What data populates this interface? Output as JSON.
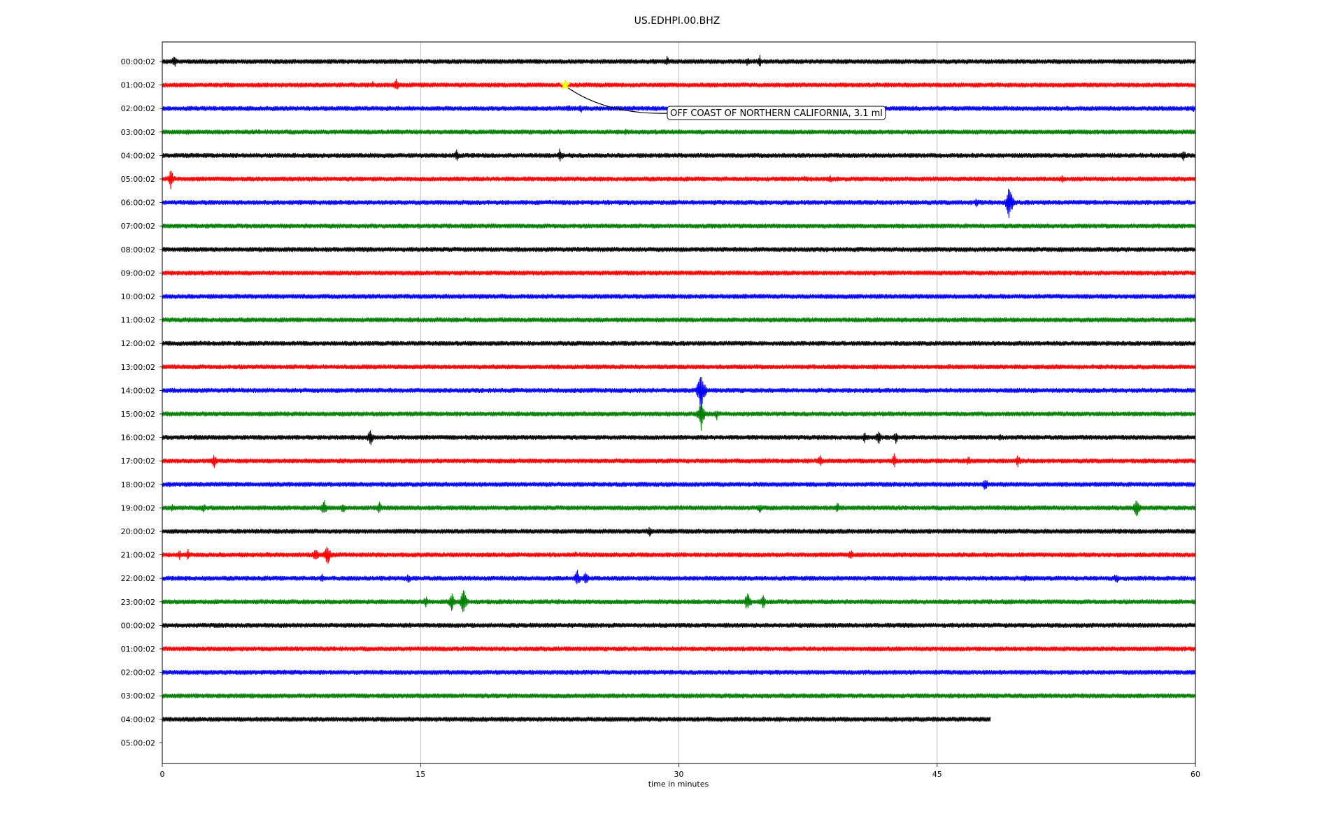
{
  "chart_data": {
    "type": "line",
    "title": "US.EDHPI.00.BHZ",
    "xlabel": "time in minutes",
    "ylabel": "",
    "xlim": [
      0,
      60
    ],
    "xticks": [
      "0",
      "15",
      "30",
      "45",
      "60"
    ],
    "xtick_values": [
      0,
      15,
      30,
      45,
      60
    ],
    "grid": "vertical",
    "row_labels": [
      "00:00:02",
      "01:00:02",
      "02:00:02",
      "03:00:02",
      "04:00:02",
      "05:00:02",
      "06:00:02",
      "07:00:02",
      "08:00:02",
      "09:00:02",
      "10:00:02",
      "11:00:02",
      "12:00:02",
      "13:00:02",
      "14:00:02",
      "15:00:02",
      "16:00:02",
      "17:00:02",
      "18:00:02",
      "19:00:02",
      "20:00:02",
      "21:00:02",
      "22:00:02",
      "23:00:02",
      "00:00:02",
      "01:00:02",
      "02:00:02",
      "03:00:02",
      "04:00:02",
      "05:00:02"
    ],
    "colors": [
      "#000000",
      "#ff0000",
      "#0000ff",
      "#008000"
    ],
    "trace_end_minutes": [
      60,
      60,
      60,
      60,
      60,
      60,
      60,
      60,
      60,
      60,
      60,
      60,
      60,
      60,
      60,
      60,
      60,
      60,
      60,
      60,
      60,
      60,
      60,
      60,
      60,
      60,
      60,
      60,
      48.1,
      0
    ],
    "bursts": [
      {
        "row": 0,
        "min": 0.7,
        "amp": 10
      },
      {
        "row": 0,
        "min": 29.3,
        "amp": 9
      },
      {
        "row": 0,
        "min": 34,
        "amp": 8
      },
      {
        "row": 0,
        "min": 34.7,
        "amp": 10
      },
      {
        "row": 1,
        "min": 12.2,
        "amp": 6
      },
      {
        "row": 1,
        "min": 13.6,
        "amp": 10
      },
      {
        "row": 1,
        "min": 23.5,
        "amp": 4
      },
      {
        "row": 2,
        "min": 23.6,
        "amp": 8
      },
      {
        "row": 2,
        "min": 24.3,
        "amp": 8
      },
      {
        "row": 2,
        "min": 34.7,
        "amp": 5
      },
      {
        "row": 2,
        "min": 37.7,
        "amp": 6
      },
      {
        "row": 2,
        "min": 59.9,
        "amp": 6
      },
      {
        "row": 3,
        "min": 26.9,
        "amp": 6
      },
      {
        "row": 4,
        "min": 17.1,
        "amp": 10
      },
      {
        "row": 4,
        "min": 23.1,
        "amp": 12
      },
      {
        "row": 4,
        "min": 59.3,
        "amp": 10
      },
      {
        "row": 5,
        "min": 0.5,
        "amp": 16
      },
      {
        "row": 5,
        "min": 37.3,
        "amp": 6
      },
      {
        "row": 5,
        "min": 38.8,
        "amp": 7
      },
      {
        "row": 5,
        "min": 52.3,
        "amp": 7
      },
      {
        "row": 6,
        "min": 47.3,
        "amp": 8
      },
      {
        "row": 6,
        "min": 49.2,
        "amp": 30
      },
      {
        "row": 14,
        "min": 31.3,
        "amp": 38
      },
      {
        "row": 15,
        "min": 31.3,
        "amp": 25
      },
      {
        "row": 15,
        "min": 32.2,
        "amp": 10
      },
      {
        "row": 16,
        "min": 1.9,
        "amp": 6
      },
      {
        "row": 16,
        "min": 12.1,
        "amp": 14
      },
      {
        "row": 16,
        "min": 40.8,
        "amp": 9
      },
      {
        "row": 16,
        "min": 41.6,
        "amp": 12
      },
      {
        "row": 16,
        "min": 42.6,
        "amp": 10
      },
      {
        "row": 16,
        "min": 48.7,
        "amp": 7
      },
      {
        "row": 17,
        "min": 3.0,
        "amp": 12
      },
      {
        "row": 17,
        "min": 38.2,
        "amp": 10
      },
      {
        "row": 17,
        "min": 42.5,
        "amp": 12
      },
      {
        "row": 17,
        "min": 46.8,
        "amp": 9
      },
      {
        "row": 17,
        "min": 49.7,
        "amp": 10
      },
      {
        "row": 18,
        "min": 47.8,
        "amp": 12
      },
      {
        "row": 19,
        "min": 0.6,
        "amp": 7
      },
      {
        "row": 19,
        "min": 2.4,
        "amp": 8
      },
      {
        "row": 19,
        "min": 9.4,
        "amp": 13
      },
      {
        "row": 19,
        "min": 10.5,
        "amp": 9
      },
      {
        "row": 19,
        "min": 12.6,
        "amp": 10
      },
      {
        "row": 19,
        "min": 34.7,
        "amp": 9
      },
      {
        "row": 19,
        "min": 39.2,
        "amp": 9
      },
      {
        "row": 19,
        "min": 56.6,
        "amp": 16
      },
      {
        "row": 20,
        "min": 28.3,
        "amp": 10
      },
      {
        "row": 21,
        "min": 1.0,
        "amp": 8
      },
      {
        "row": 21,
        "min": 1.5,
        "amp": 10
      },
      {
        "row": 21,
        "min": 8.9,
        "amp": 14
      },
      {
        "row": 21,
        "min": 9.6,
        "amp": 18
      },
      {
        "row": 21,
        "min": 24.0,
        "amp": 6
      },
      {
        "row": 21,
        "min": 40.0,
        "amp": 10
      },
      {
        "row": 22,
        "min": 9.3,
        "amp": 8
      },
      {
        "row": 22,
        "min": 14.3,
        "amp": 8
      },
      {
        "row": 22,
        "min": 24.1,
        "amp": 14
      },
      {
        "row": 22,
        "min": 24.6,
        "amp": 12
      },
      {
        "row": 22,
        "min": 50.1,
        "amp": 7
      },
      {
        "row": 22,
        "min": 55.4,
        "amp": 10
      },
      {
        "row": 23,
        "min": 15.3,
        "amp": 10
      },
      {
        "row": 23,
        "min": 16.8,
        "amp": 16
      },
      {
        "row": 23,
        "min": 17.5,
        "amp": 22
      },
      {
        "row": 23,
        "min": 34.0,
        "amp": 18
      },
      {
        "row": 23,
        "min": 34.9,
        "amp": 11
      }
    ],
    "event": {
      "row": 1,
      "minute": 23.4,
      "marker": "star",
      "marker_color": "#ffff00",
      "label": "OFF COAST OF NORTHERN CALIFORNIA, 3.1 ml"
    }
  }
}
